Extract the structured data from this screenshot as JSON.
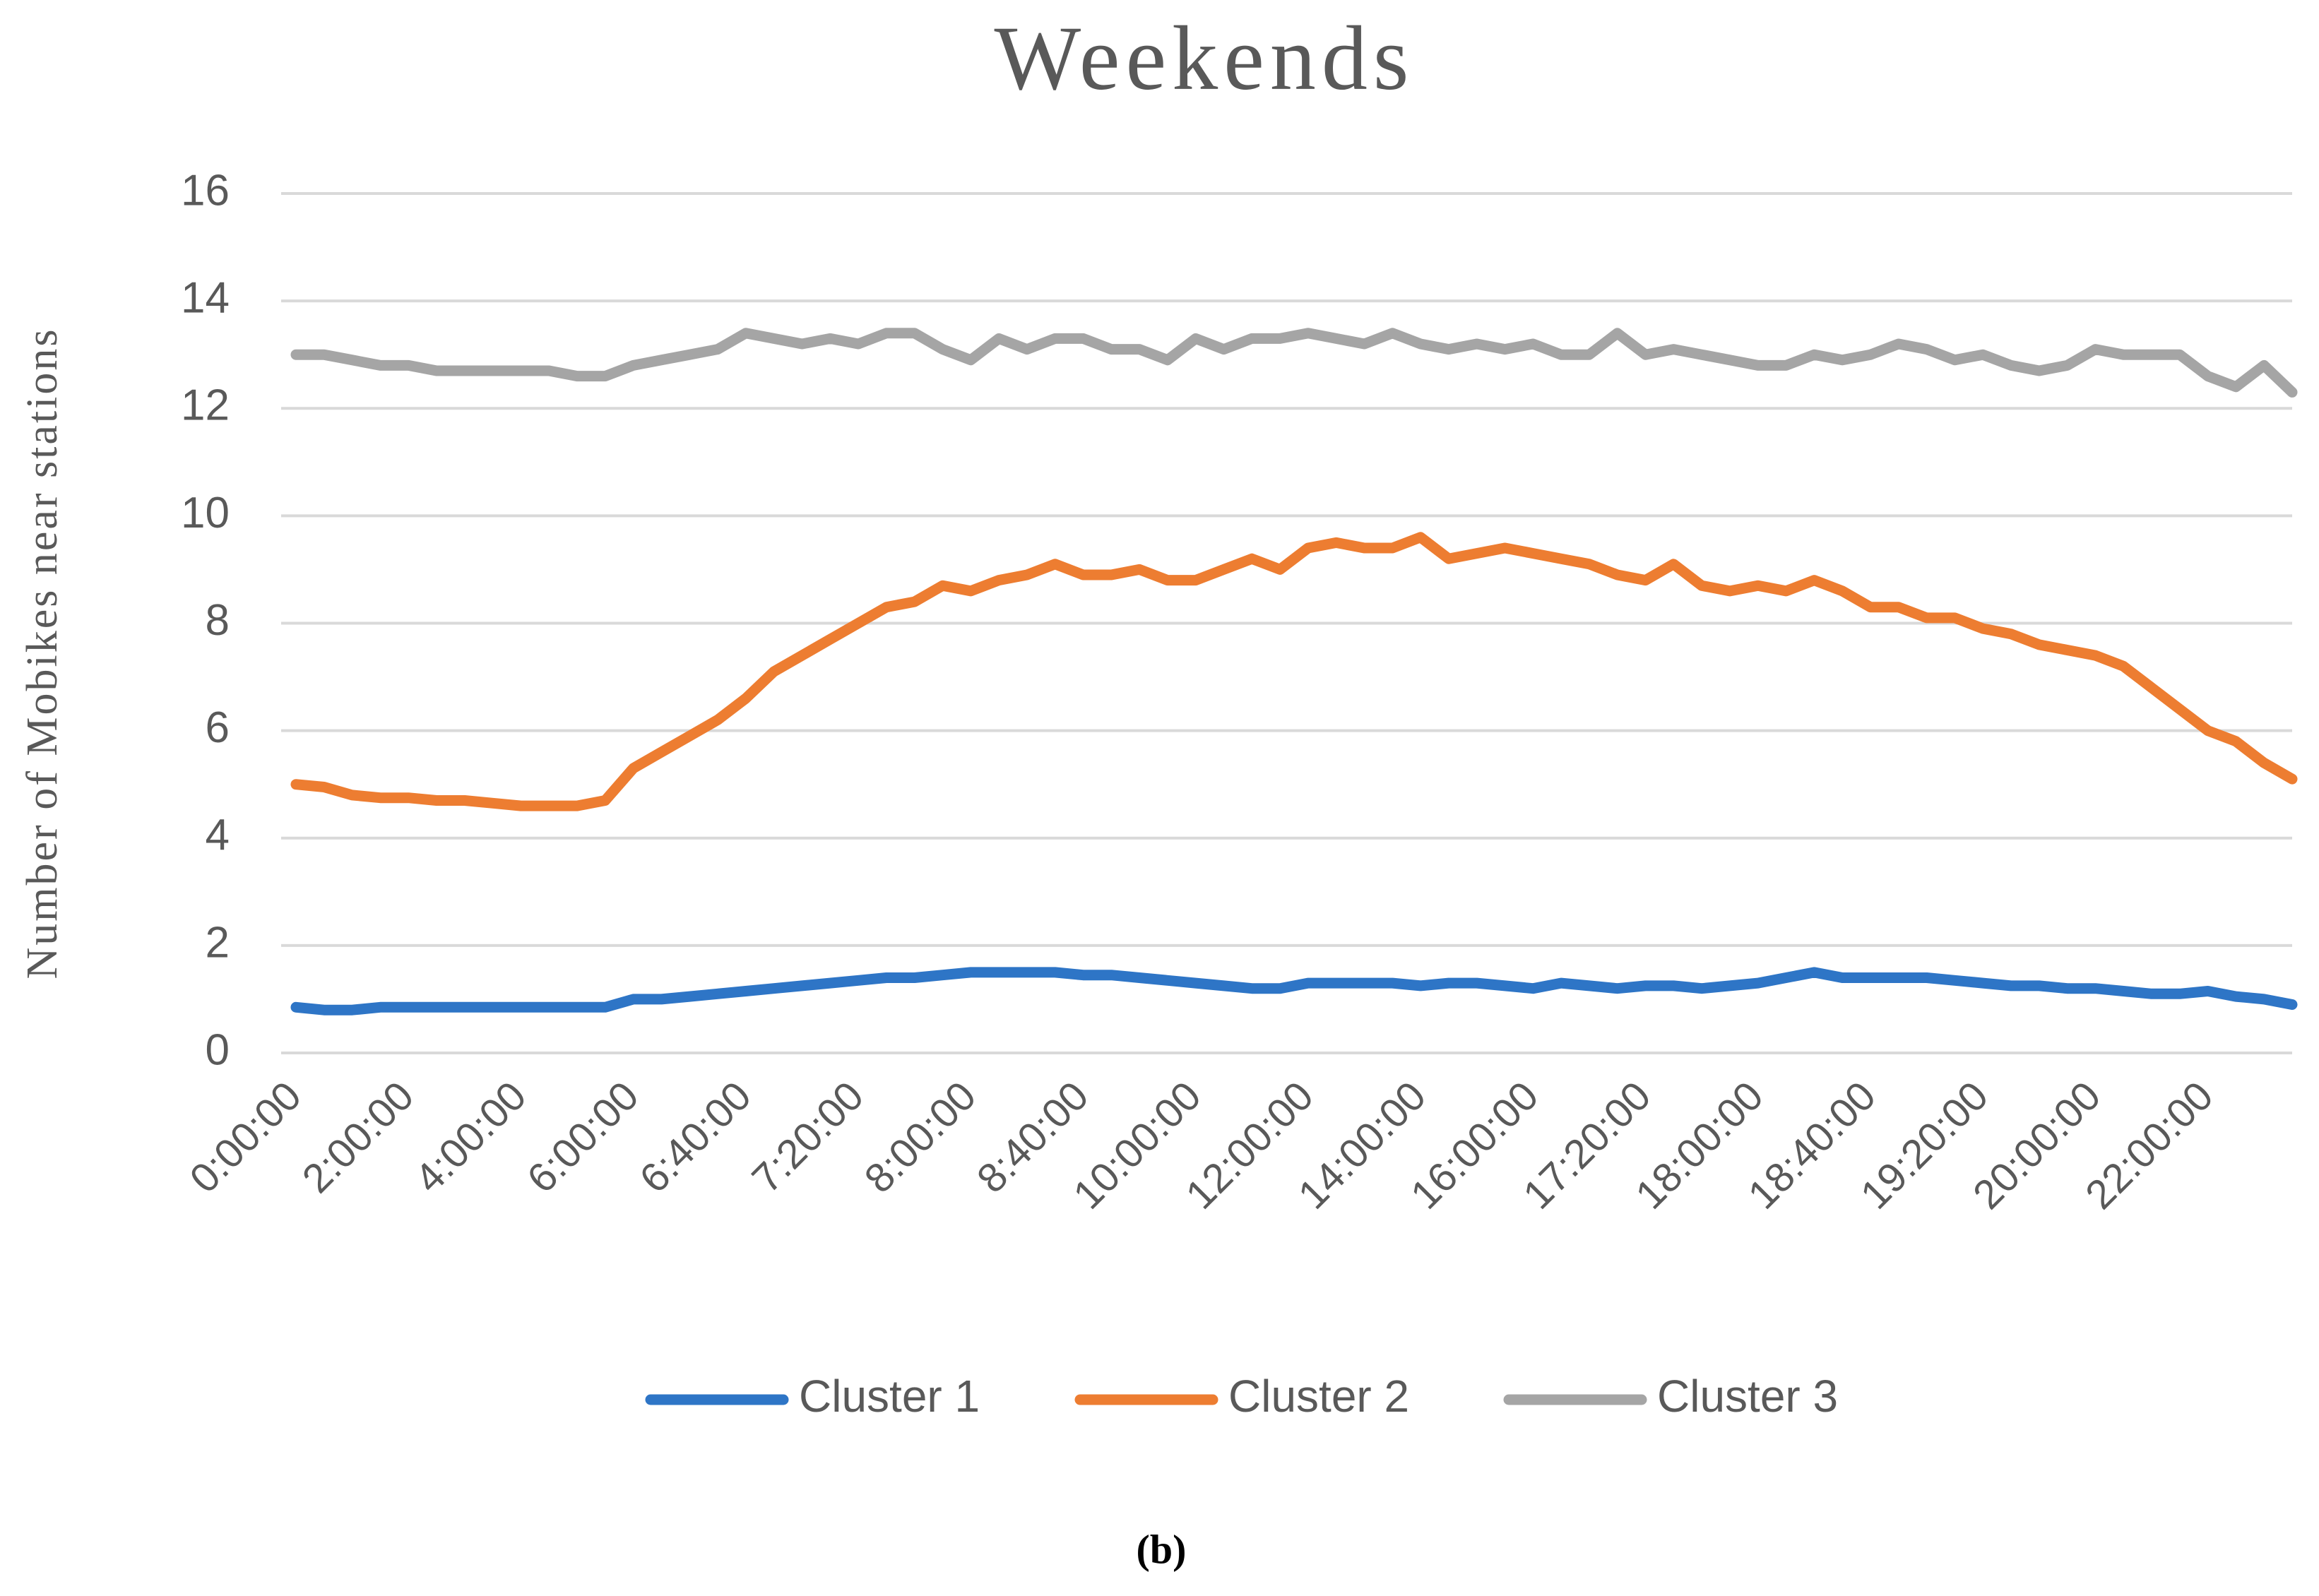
{
  "chart_data": {
    "type": "line",
    "title": "Weekends",
    "y_label": "Number of Mobikes near stations",
    "caption": "(b)",
    "categories": [
      "0:00:00",
      null,
      null,
      null,
      "2:00:00",
      null,
      null,
      null,
      "4:00:00",
      null,
      null,
      null,
      "6:00:00",
      null,
      null,
      null,
      "6:40:00",
      null,
      null,
      null,
      "7:20:00",
      null,
      null,
      null,
      "8:00:00",
      null,
      null,
      null,
      "8:40:00",
      null,
      null,
      null,
      "10:00:00",
      null,
      null,
      null,
      "12:00:00",
      null,
      null,
      null,
      "14:00:00",
      null,
      null,
      null,
      "16:00:00",
      null,
      null,
      null,
      "17:20:00",
      null,
      null,
      null,
      "18:00:00",
      null,
      null,
      null,
      "18:40:00",
      null,
      null,
      null,
      "19:20:00",
      null,
      null,
      null,
      "20:00:00",
      null,
      null,
      null,
      "22:00:00",
      null,
      null,
      null
    ],
    "series": [
      {
        "name": "Cluster 1",
        "color": "#2e75c6",
        "values": [
          0.85,
          0.8,
          0.8,
          0.85,
          0.85,
          0.85,
          0.85,
          0.85,
          0.85,
          0.85,
          0.85,
          0.85,
          1.0,
          1.0,
          1.05,
          1.1,
          1.15,
          1.2,
          1.25,
          1.3,
          1.35,
          1.4,
          1.4,
          1.45,
          1.5,
          1.5,
          1.5,
          1.5,
          1.45,
          1.45,
          1.4,
          1.35,
          1.3,
          1.25,
          1.2,
          1.2,
          1.3,
          1.3,
          1.3,
          1.3,
          1.25,
          1.3,
          1.3,
          1.25,
          1.2,
          1.3,
          1.25,
          1.2,
          1.25,
          1.25,
          1.2,
          1.25,
          1.3,
          1.4,
          1.5,
          1.4,
          1.4,
          1.4,
          1.4,
          1.35,
          1.3,
          1.25,
          1.25,
          1.2,
          1.2,
          1.15,
          1.1,
          1.1,
          1.15,
          1.05,
          1.0,
          0.9
        ]
      },
      {
        "name": "Cluster 2",
        "color": "#ed7d31",
        "values": [
          5.0,
          4.95,
          4.8,
          4.75,
          4.75,
          4.7,
          4.7,
          4.65,
          4.6,
          4.6,
          4.6,
          4.7,
          5.3,
          5.6,
          5.9,
          6.2,
          6.6,
          7.1,
          7.4,
          7.7,
          8.0,
          8.3,
          8.4,
          8.7,
          8.6,
          8.8,
          8.9,
          9.1,
          8.9,
          8.9,
          9.0,
          8.8,
          8.8,
          9.0,
          9.2,
          9.0,
          9.4,
          9.5,
          9.4,
          9.4,
          9.6,
          9.2,
          9.3,
          9.4,
          9.3,
          9.2,
          9.1,
          8.9,
          8.8,
          9.1,
          8.7,
          8.6,
          8.7,
          8.6,
          8.8,
          8.6,
          8.3,
          8.3,
          8.1,
          8.1,
          7.9,
          7.8,
          7.6,
          7.5,
          7.4,
          7.2,
          6.8,
          6.4,
          6.0,
          5.8,
          5.4,
          5.1
        ]
      },
      {
        "name": "Cluster 3",
        "color": "#a5a5a5",
        "values": [
          13.0,
          13.0,
          12.9,
          12.8,
          12.8,
          12.7,
          12.7,
          12.7,
          12.7,
          12.7,
          12.6,
          12.6,
          12.8,
          12.9,
          13.0,
          13.1,
          13.4,
          13.3,
          13.2,
          13.3,
          13.2,
          13.4,
          13.4,
          13.1,
          12.9,
          13.3,
          13.1,
          13.3,
          13.3,
          13.1,
          13.1,
          12.9,
          13.3,
          13.1,
          13.3,
          13.3,
          13.4,
          13.3,
          13.2,
          13.4,
          13.2,
          13.1,
          13.2,
          13.1,
          13.2,
          13.0,
          13.0,
          13.4,
          13.0,
          13.1,
          13.0,
          12.9,
          12.8,
          12.8,
          13.0,
          12.9,
          13.0,
          13.2,
          13.1,
          12.9,
          13.0,
          12.8,
          12.7,
          12.8,
          13.1,
          13.0,
          13.0,
          13.0,
          12.6,
          12.4,
          12.8,
          12.3
        ]
      }
    ],
    "ylim": [
      0,
      16
    ],
    "yticks": [
      0,
      2,
      4,
      6,
      8,
      10,
      12,
      14,
      16
    ],
    "grid": true,
    "legend": "bottom"
  }
}
